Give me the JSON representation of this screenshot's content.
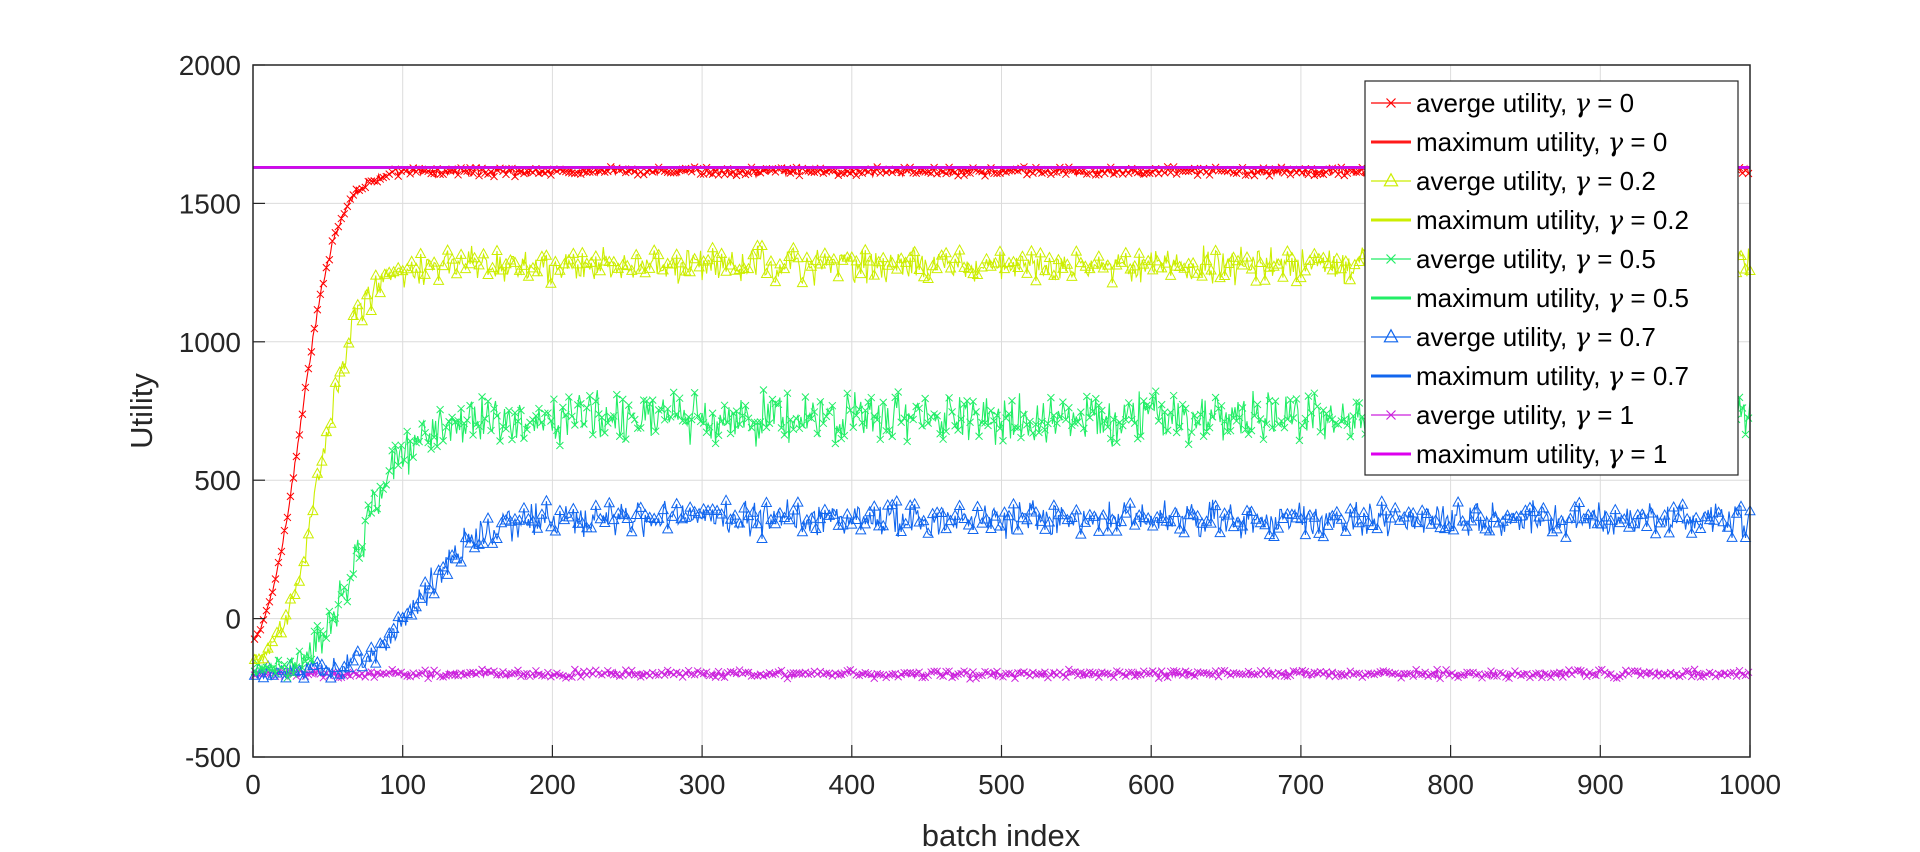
{
  "chart_data": {
    "type": "line",
    "title": "",
    "xlabel": "batch index",
    "ylabel": "Utility",
    "xlim": [
      0,
      1000
    ],
    "ylim": [
      -500,
      2000
    ],
    "xticks": [
      "0",
      "100",
      "200",
      "300",
      "400",
      "500",
      "600",
      "700",
      "800",
      "900",
      "1000"
    ],
    "yticks": [
      "-500",
      "0",
      "500",
      "1000",
      "1500",
      "2000"
    ],
    "grid": true,
    "legend_position": "top-right",
    "series": [
      {
        "name": "averge utility, γ = 0",
        "color": "#ff0000",
        "marker": "x",
        "kind": "average",
        "start": -200,
        "plateau": 1615,
        "rise_midpoint": 32,
        "rise_rate": 0.085,
        "noise": 20
      },
      {
        "name": "maximum utility, γ = 0",
        "color": "#ff1a1a",
        "marker": "none",
        "kind": "maximum",
        "value": 1630
      },
      {
        "name": "averge utility, γ = 0.2",
        "color": "#ccee00",
        "marker": "triangle",
        "kind": "average",
        "start": -200,
        "plateau": 1275,
        "rise_midpoint": 45,
        "rise_rate": 0.08,
        "noise": 75
      },
      {
        "name": "maximum utility, γ = 0.2",
        "color": "#ccee00",
        "marker": "none",
        "kind": "maximum",
        "value": 1630
      },
      {
        "name": "averge utility, γ = 0.5",
        "color": "#22ee66",
        "marker": "x",
        "kind": "average",
        "start": -200,
        "plateau": 725,
        "rise_midpoint": 72,
        "rise_rate": 0.065,
        "noise": 110
      },
      {
        "name": "maximum utility, γ = 0.5",
        "color": "#22ee66",
        "marker": "none",
        "kind": "maximum",
        "value": 1630
      },
      {
        "name": "averge utility, γ = 0.7",
        "color": "#1166ee",
        "marker": "triangle",
        "kind": "average",
        "start": -200,
        "plateau": 360,
        "rise_midpoint": 112,
        "rise_rate": 0.055,
        "noise": 75
      },
      {
        "name": "maximum utility, γ = 0.7",
        "color": "#1166ee",
        "marker": "none",
        "kind": "maximum",
        "value": 1630
      },
      {
        "name": "averge utility, γ = 1",
        "color": "#cc22dd",
        "marker": "x",
        "kind": "average",
        "start": -200,
        "plateau": -200,
        "rise_midpoint": 0,
        "rise_rate": 0.1,
        "noise": 18
      },
      {
        "name": "maximum utility, γ = 1",
        "color": "#dd00ee",
        "marker": "none",
        "kind": "maximum",
        "value": 1630
      }
    ]
  }
}
